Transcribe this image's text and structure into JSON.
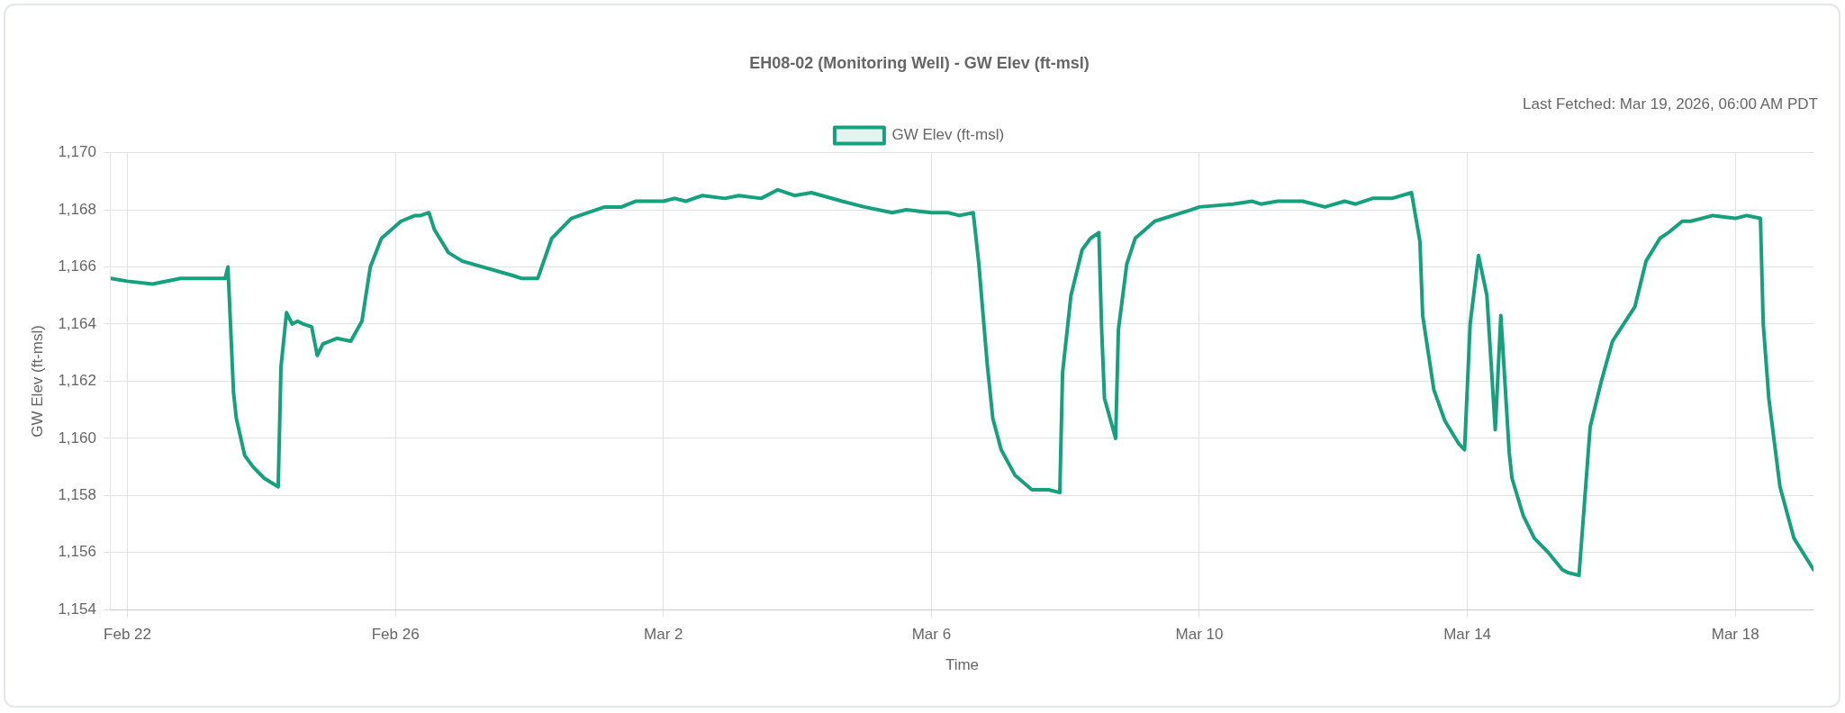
{
  "chart_data": {
    "type": "line",
    "title": "EH08-02 (Monitoring Well) - GW Elev (ft-msl)",
    "xlabel": "Time",
    "ylabel": "GW Elev (ft-msl)",
    "annotations": [
      "Last Fetched: Mar 19, 2026, 06:00 AM PDT"
    ],
    "x": [
      "2026-02-21T18:00",
      "2026-02-22T00:00",
      "2026-02-22T09:00",
      "2026-02-22T19:00",
      "2026-02-23T08:00",
      "2026-02-23T11:00",
      "2026-02-23T12:00",
      "2026-02-23T14:00",
      "2026-02-23T15:00",
      "2026-02-23T18:00",
      "2026-02-23T21:00",
      "2026-02-24T01:00",
      "2026-02-24T06:00",
      "2026-02-24T07:00",
      "2026-02-24T09:00",
      "2026-02-24T11:00",
      "2026-02-24T13:00",
      "2026-02-24T15:00",
      "2026-02-24T18:00",
      "2026-02-24T20:00",
      "2026-02-24T22:00",
      "2026-02-25T03:00",
      "2026-02-25T08:00",
      "2026-02-25T12:00",
      "2026-02-25T15:00",
      "2026-02-25T19:00",
      "2026-02-26T02:00",
      "2026-02-26T07:00",
      "2026-02-26T09:00",
      "2026-02-26T12:00",
      "2026-02-26T14:00",
      "2026-02-26T19:00",
      "2026-02-27T00:00",
      "2026-02-27T18:00",
      "2026-02-27T21:00",
      "2026-02-28T03:00",
      "2026-02-28T08:00",
      "2026-02-28T15:00",
      "2026-02-28T21:00",
      "2026-03-01T03:00",
      "2026-03-01T09:00",
      "2026-03-01T14:00",
      "2026-03-01T19:00",
      "2026-03-02T00:00",
      "2026-03-02T04:00",
      "2026-03-02T08:00",
      "2026-03-02T14:00",
      "2026-03-02T22:00",
      "2026-03-03T03:00",
      "2026-03-03T11:00",
      "2026-03-03T17:00",
      "2026-03-03T23:00",
      "2026-03-04T05:00",
      "2026-03-04T16:00",
      "2026-03-05T00:00",
      "2026-03-05T10:00",
      "2026-03-05T15:00",
      "2026-03-06T00:00",
      "2026-03-06T06:00",
      "2026-03-06T10:00",
      "2026-03-06T15:00",
      "2026-03-06T17:00",
      "2026-03-06T20:00",
      "2026-03-06T22:00",
      "2026-03-07T01:00",
      "2026-03-07T06:00",
      "2026-03-07T12:00",
      "2026-03-07T18:00",
      "2026-03-07T22:00",
      "2026-03-07T23:00",
      "2026-03-08T02:00",
      "2026-03-08T06:00",
      "2026-03-08T09:00",
      "2026-03-08T12:00",
      "2026-03-08T13:00",
      "2026-03-08T14:00",
      "2026-03-08T18:00",
      "2026-03-08T19:00",
      "2026-03-08T22:00",
      "2026-03-09T01:00",
      "2026-03-09T08:00",
      "2026-03-09T21:00",
      "2026-03-10T00:00",
      "2026-03-10T12:00",
      "2026-03-10T19:00",
      "2026-03-10T22:00",
      "2026-03-11T04:00",
      "2026-03-11T13:00",
      "2026-03-11T21:00",
      "2026-03-12T04:00",
      "2026-03-12T08:00",
      "2026-03-12T14:00",
      "2026-03-12T21:00",
      "2026-03-13T04:00",
      "2026-03-13T07:00",
      "2026-03-13T08:00",
      "2026-03-13T10:00",
      "2026-03-13T12:00",
      "2026-03-13T16:00",
      "2026-03-13T21:00",
      "2026-03-13T23:00",
      "2026-03-14T01:00",
      "2026-03-14T04:00",
      "2026-03-14T07:00",
      "2026-03-14T10:00",
      "2026-03-14T12:00",
      "2026-03-14T15:00",
      "2026-03-14T16:00",
      "2026-03-14T20:00",
      "2026-03-15T00:00",
      "2026-03-15T05:00",
      "2026-03-15T10:00",
      "2026-03-15T12:00",
      "2026-03-15T16:00",
      "2026-03-15T20:00",
      "2026-03-16T00:00",
      "2026-03-16T04:00",
      "2026-03-16T08:00",
      "2026-03-16T12:00",
      "2026-03-16T16:00",
      "2026-03-16T21:00",
      "2026-03-17T00:00",
      "2026-03-17T05:00",
      "2026-03-17T08:00",
      "2026-03-17T16:00",
      "2026-03-18T00:00",
      "2026-03-18T04:00",
      "2026-03-18T09:00",
      "2026-03-18T10:00",
      "2026-03-18T12:00",
      "2026-03-18T16:00",
      "2026-03-18T21:00",
      "2026-03-19T04:00"
    ],
    "series": [
      {
        "name": "GW Elev (ft-msl)",
        "color": "#17a07e",
        "values": [
          1165.6,
          1165.5,
          1165.4,
          1165.6,
          1165.6,
          1165.6,
          1166.0,
          1161.6,
          1160.7,
          1159.4,
          1159.0,
          1158.6,
          1158.3,
          1162.5,
          1164.4,
          1164.0,
          1164.1,
          1164.0,
          1163.9,
          1162.9,
          1163.3,
          1163.5,
          1163.4,
          1164.1,
          1166.0,
          1167.0,
          1167.6,
          1167.8,
          1167.8,
          1167.9,
          1167.3,
          1166.5,
          1166.2,
          1165.7,
          1165.6,
          1165.6,
          1167.0,
          1167.7,
          1167.9,
          1168.1,
          1168.1,
          1168.3,
          1168.3,
          1168.3,
          1168.4,
          1168.3,
          1168.5,
          1168.4,
          1168.5,
          1168.4,
          1168.7,
          1168.5,
          1168.6,
          1168.3,
          1168.1,
          1167.9,
          1168.0,
          1167.9,
          1167.9,
          1167.8,
          1167.9,
          1166.1,
          1162.6,
          1160.7,
          1159.6,
          1158.7,
          1158.2,
          1158.2,
          1158.1,
          1162.3,
          1165.0,
          1166.6,
          1167.0,
          1167.2,
          1163.8,
          1161.4,
          1160.0,
          1163.8,
          1166.1,
          1167.0,
          1167.6,
          1168.0,
          1168.1,
          1168.2,
          1168.3,
          1168.2,
          1168.3,
          1168.3,
          1168.1,
          1168.3,
          1168.2,
          1168.4,
          1168.4,
          1168.6,
          1166.9,
          1164.3,
          1163.0,
          1161.7,
          1160.6,
          1159.8,
          1159.6,
          1164.0,
          1166.4,
          1165.0,
          1160.3,
          1164.3,
          1159.5,
          1158.6,
          1157.3,
          1156.5,
          1156.0,
          1155.4,
          1155.3,
          1155.2,
          1160.4,
          1162.0,
          1163.4,
          1164.0,
          1164.6,
          1166.2,
          1167.0,
          1167.2,
          1167.6,
          1167.6,
          1167.8,
          1167.7,
          1167.8,
          1167.7,
          1164.0,
          1161.4,
          1158.3,
          1156.5,
          1155.4
        ]
      }
    ],
    "xlim": [
      "2026-02-21T18:00",
      "2026-03-19T04:00"
    ],
    "xticks": [
      {
        "value": "2026-02-22",
        "label": "Feb 22"
      },
      {
        "value": "2026-02-26",
        "label": "Feb 26"
      },
      {
        "value": "2026-03-02",
        "label": "Mar 2"
      },
      {
        "value": "2026-03-06",
        "label": "Mar 6"
      },
      {
        "value": "2026-03-10",
        "label": "Mar 10"
      },
      {
        "value": "2026-03-14",
        "label": "Mar 14"
      },
      {
        "value": "2026-03-18",
        "label": "Mar 18"
      }
    ],
    "ylim": [
      1154,
      1170
    ],
    "yticks": [
      {
        "value": 1154,
        "label": "1,154"
      },
      {
        "value": 1156,
        "label": "1,156"
      },
      {
        "value": 1158,
        "label": "1,158"
      },
      {
        "value": 1160,
        "label": "1,160"
      },
      {
        "value": 1162,
        "label": "1,162"
      },
      {
        "value": 1164,
        "label": "1,164"
      },
      {
        "value": 1166,
        "label": "1,166"
      },
      {
        "value": 1168,
        "label": "1,168"
      },
      {
        "value": 1170,
        "label": "1,170"
      }
    ],
    "grid": true,
    "legend": "top",
    "marker": "none",
    "line_style": "solid"
  }
}
